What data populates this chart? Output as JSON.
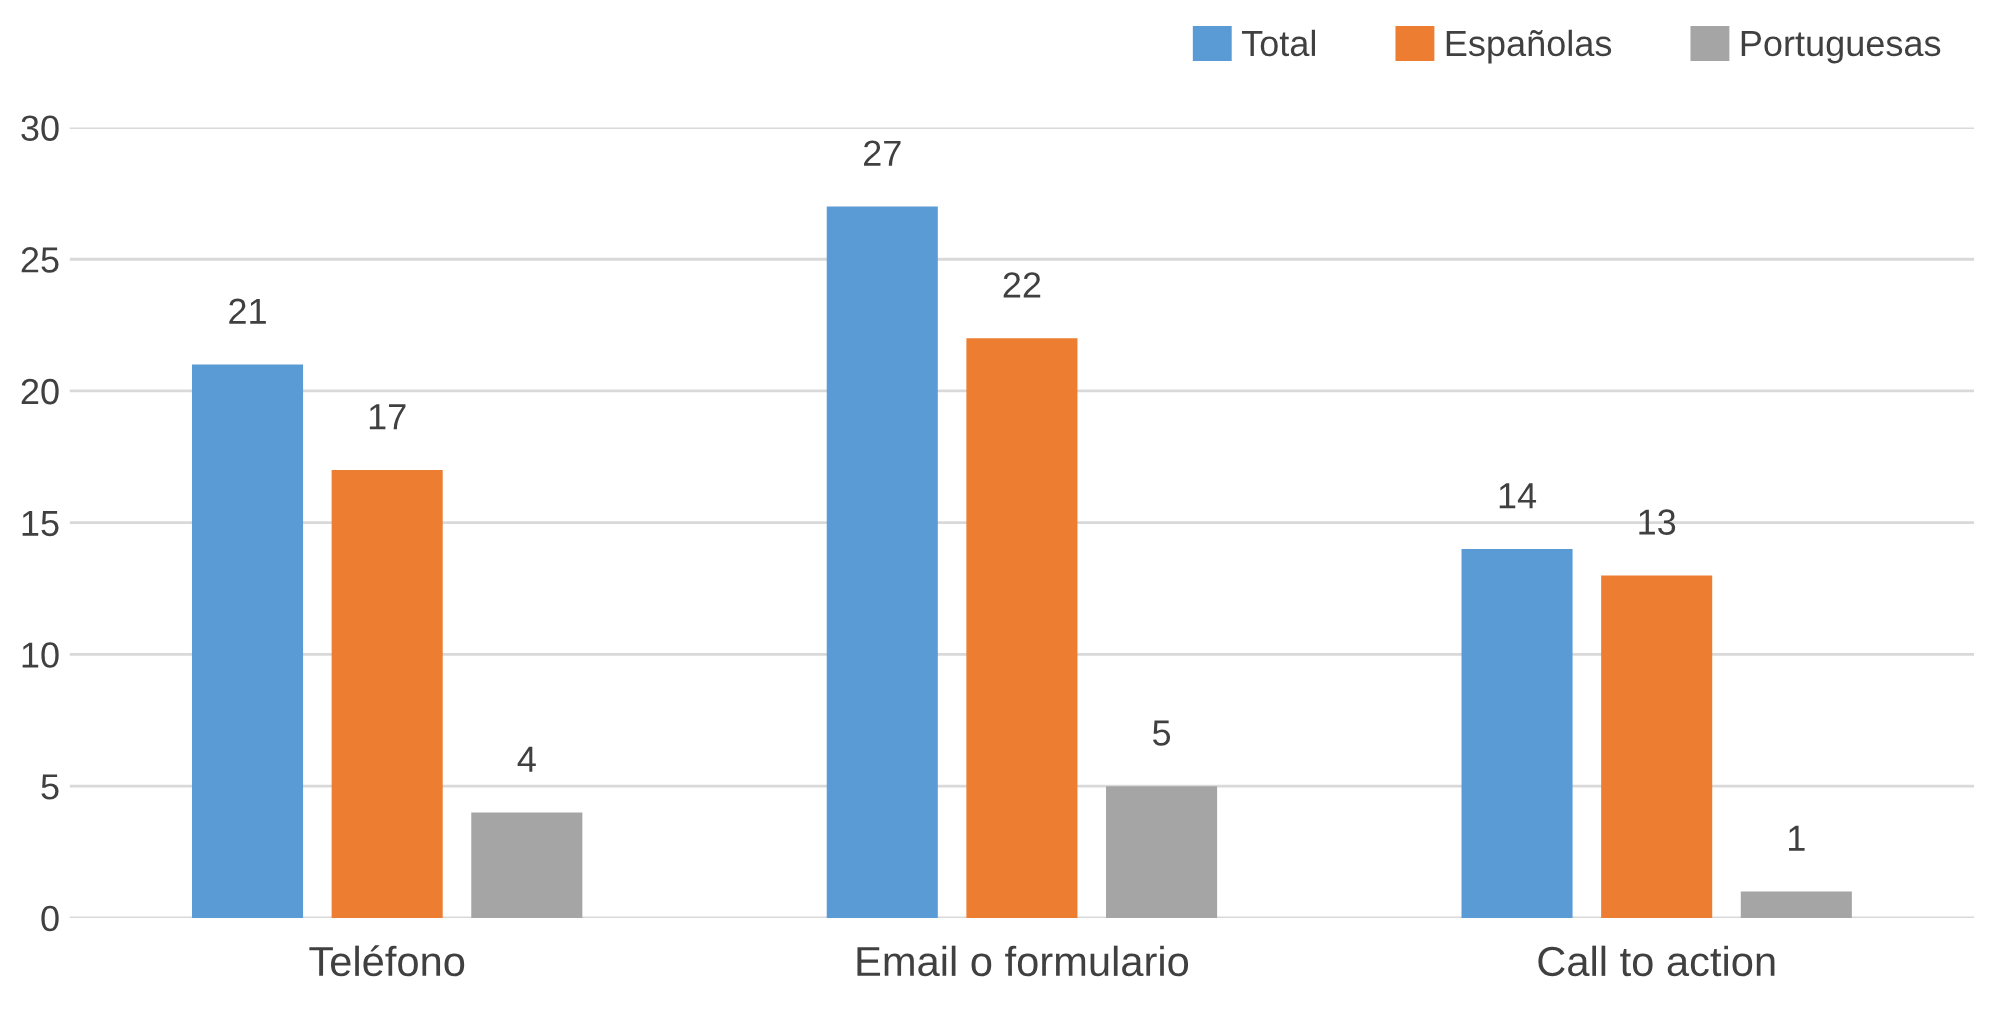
{
  "chart_data": {
    "type": "bar",
    "categories": [
      "Teléfono",
      "Email o formulario",
      "Call to action"
    ],
    "series": [
      {
        "name": "Total",
        "color": "#5b9bd5",
        "values": [
          21,
          27,
          14
        ]
      },
      {
        "name": "Españolas",
        "color": "#ed7d31",
        "values": [
          17,
          22,
          13
        ]
      },
      {
        "name": "Portuguesas",
        "color": "#a5a5a5",
        "values": [
          4,
          5,
          1
        ]
      }
    ],
    "ylim": [
      0,
      30
    ],
    "yticks": [
      0,
      5,
      10,
      15,
      20,
      25,
      30
    ],
    "grid": "y",
    "legend": "top right",
    "data_labels": true
  }
}
